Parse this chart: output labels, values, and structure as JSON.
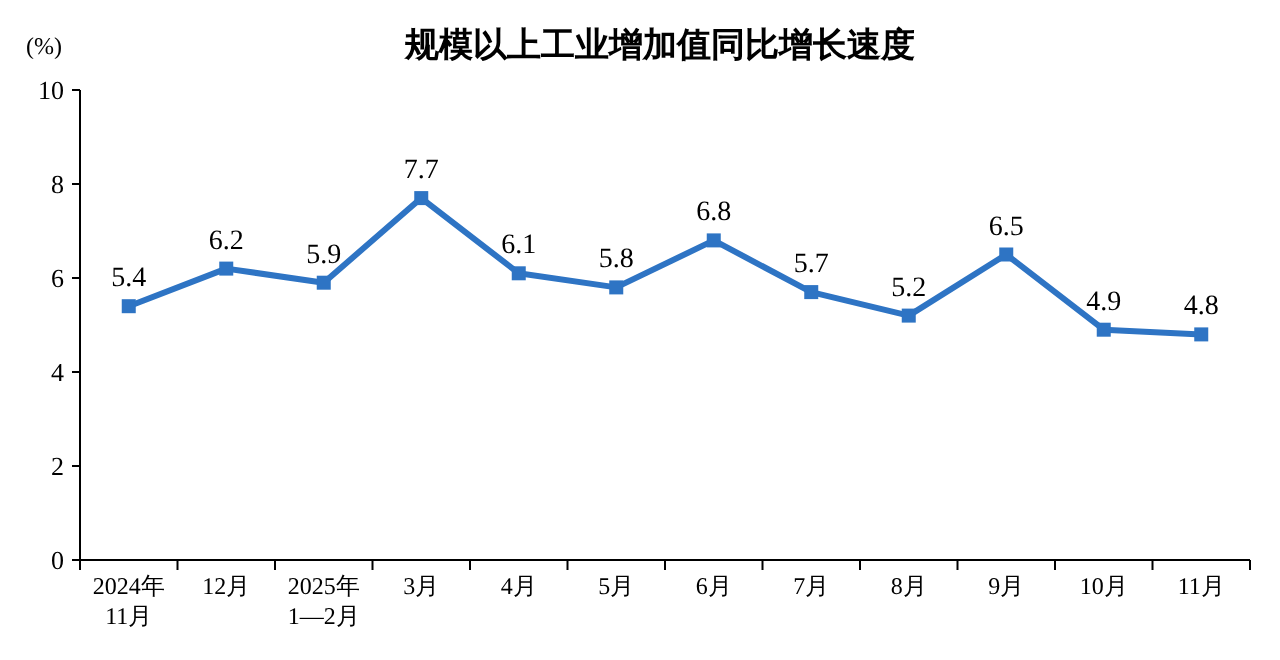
{
  "chart_data": {
    "type": "line",
    "title": "规模以上工业增加值同比增长速度",
    "ylabel": "(%)",
    "categories": [
      "2024年\n11月",
      "12月",
      "2025年\n1—2月",
      "3月",
      "4月",
      "5月",
      "6月",
      "7月",
      "8月",
      "9月",
      "10月",
      "11月"
    ],
    "series": [
      {
        "color": "#2e74c4",
        "values": [
          5.4,
          6.2,
          5.9,
          7.7,
          6.1,
          5.8,
          6.8,
          5.7,
          5.2,
          6.5,
          4.9,
          4.8
        ]
      }
    ],
    "ylim": [
      0,
      10
    ],
    "yticks": [
      0,
      2,
      4,
      6,
      8,
      10
    ],
    "marker": "square",
    "line_style": "solid",
    "data_labels": true
  }
}
